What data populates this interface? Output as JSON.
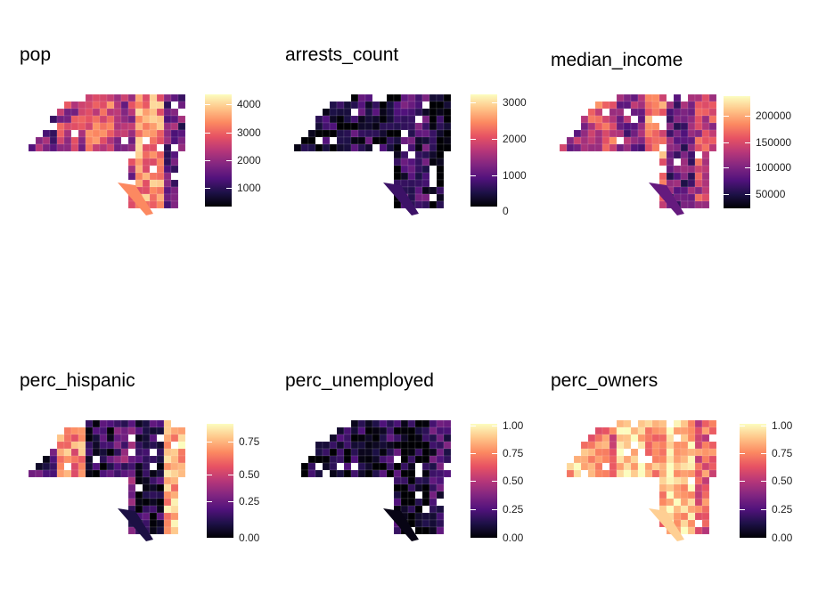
{
  "colormap": {
    "name": "magma",
    "stops": [
      "#000004",
      "#1d1147",
      "#51127c",
      "#822681",
      "#b73779",
      "#e75263",
      "#fc8961",
      "#fec488",
      "#fcfdbf"
    ]
  },
  "panels": [
    {
      "id": "pop",
      "title": "pop",
      "ticks": [
        "4000",
        "3000",
        "2000",
        "1000"
      ],
      "fill_values": [
        0.35,
        0.5,
        0.65,
        0.45,
        0.75,
        0.3
      ]
    },
    {
      "id": "arrests_count",
      "title": "arrests_count",
      "ticks": [
        "3000",
        "2000",
        "1000",
        "0"
      ],
      "fill_values": [
        0.05,
        0.1,
        0.15,
        0.08,
        0.2,
        0.03
      ]
    },
    {
      "id": "median_income",
      "title": "median_income",
      "ticks": [
        "200000",
        "150000",
        "100000",
        "50000"
      ],
      "fill_values": [
        0.45,
        0.6,
        0.35,
        0.7,
        0.3,
        0.55
      ]
    },
    {
      "id": "perc_hispanic",
      "title": "perc_hispanic",
      "ticks": [
        "0.75",
        "0.50",
        "0.25",
        "0.00"
      ],
      "fill_values": [
        0.2,
        0.75,
        0.15,
        0.3,
        0.12,
        0.85
      ]
    },
    {
      "id": "perc_unemployed",
      "title": "perc_unemployed",
      "ticks": [
        "1.00",
        "0.75",
        "0.50",
        "0.25",
        "0.00"
      ],
      "fill_values": [
        0.05,
        0.1,
        0.08,
        0.15,
        0.03,
        0.2
      ]
    },
    {
      "id": "perc_owners",
      "title": "perc_owners",
      "ticks": [
        "1.00",
        "0.75",
        "0.50",
        "0.25",
        "0.00"
      ],
      "fill_values": [
        0.85,
        0.7,
        0.95,
        0.75,
        0.9,
        0.65
      ]
    }
  ]
}
